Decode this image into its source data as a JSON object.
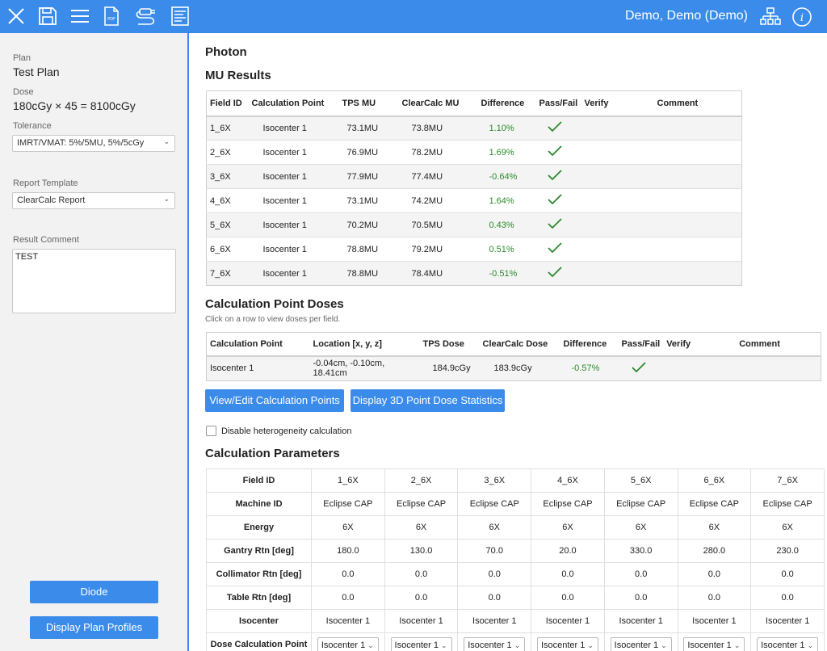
{
  "topbar": {
    "icons": [
      "close-icon",
      "save-icon",
      "menu-icon",
      "pdf-icon",
      "plug-icon",
      "document-list-icon"
    ],
    "pdf_text": "PDF",
    "user": "Demo, Demo (Demo)",
    "right_icons": [
      "org-chart-icon",
      "info-icon"
    ]
  },
  "sidebar": {
    "plan_label": "Plan",
    "plan_value": "Test Plan",
    "dose_label": "Dose",
    "dose_value": "180cGy × 45 = 8100cGy",
    "tolerance_label": "Tolerance",
    "tolerance_value": "IMRT/VMAT: 5%/5MU, 5%/5cGy",
    "report_template_label": "Report Template",
    "report_template_value": "ClearCalc Report",
    "result_comment_label": "Result Comment",
    "result_comment_value": "TEST",
    "diode_button": "Diode",
    "plan_profiles_button": "Display Plan Profiles"
  },
  "main": {
    "heading": "Photon",
    "mu_results": {
      "title": "MU Results",
      "columns": [
        "Field ID",
        "Calculation Point",
        "TPS MU",
        "ClearCalc MU",
        "Difference",
        "Pass/Fail",
        "Verify",
        "Comment"
      ],
      "rows": [
        {
          "field": "1_6X",
          "point": "Isocenter 1",
          "tps": "73.1MU",
          "cc": "73.8MU",
          "diff": "1.10%"
        },
        {
          "field": "2_6X",
          "point": "Isocenter 1",
          "tps": "76.9MU",
          "cc": "78.2MU",
          "diff": "1.69%"
        },
        {
          "field": "3_6X",
          "point": "Isocenter 1",
          "tps": "77.9MU",
          "cc": "77.4MU",
          "diff": "-0.64%"
        },
        {
          "field": "4_6X",
          "point": "Isocenter 1",
          "tps": "73.1MU",
          "cc": "74.2MU",
          "diff": "1.64%"
        },
        {
          "field": "5_6X",
          "point": "Isocenter 1",
          "tps": "70.2MU",
          "cc": "70.5MU",
          "diff": "0.43%"
        },
        {
          "field": "6_6X",
          "point": "Isocenter 1",
          "tps": "78.8MU",
          "cc": "79.2MU",
          "diff": "0.51%"
        },
        {
          "field": "7_6X",
          "point": "Isocenter 1",
          "tps": "78.8MU",
          "cc": "78.4MU",
          "diff": "-0.51%"
        }
      ]
    },
    "calc_point_doses": {
      "title": "Calculation Point Doses",
      "subtitle": "Click on a row to view doses per field.",
      "columns": [
        "Calculation Point",
        "Location [x, y, z]",
        "TPS Dose",
        "ClearCalc Dose",
        "Difference",
        "Pass/Fail",
        "Verify",
        "Comment"
      ],
      "rows": [
        {
          "point": "Isocenter 1",
          "location": "-0.04cm, -0.10cm, 18.41cm",
          "tps": "184.9cGy",
          "cc": "183.9cGy",
          "diff": "-0.57%"
        }
      ]
    },
    "buttons": {
      "view_edit": "View/Edit Calculation Points",
      "display_3d": "Display 3D Point Dose Statistics"
    },
    "heterogeneity_label": "Disable heterogeneity calculation",
    "calc_params": {
      "title": "Calculation Parameters",
      "rows": [
        {
          "label": "Field ID",
          "values": [
            "1_6X",
            "2_6X",
            "3_6X",
            "4_6X",
            "5_6X",
            "6_6X",
            "7_6X"
          ]
        },
        {
          "label": "Machine ID",
          "values": [
            "Eclipse CAP",
            "Eclipse CAP",
            "Eclipse CAP",
            "Eclipse CAP",
            "Eclipse CAP",
            "Eclipse CAP",
            "Eclipse CAP"
          ]
        },
        {
          "label": "Energy",
          "values": [
            "6X",
            "6X",
            "6X",
            "6X",
            "6X",
            "6X",
            "6X"
          ]
        },
        {
          "label": "Gantry Rtn [deg]",
          "values": [
            "180.0",
            "130.0",
            "70.0",
            "20.0",
            "330.0",
            "280.0",
            "230.0"
          ]
        },
        {
          "label": "Collimator Rtn [deg]",
          "values": [
            "0.0",
            "0.0",
            "0.0",
            "0.0",
            "0.0",
            "0.0",
            "0.0"
          ]
        },
        {
          "label": "Table Rtn [deg]",
          "values": [
            "0.0",
            "0.0",
            "0.0",
            "0.0",
            "0.0",
            "0.0",
            "0.0"
          ]
        },
        {
          "label": "Isocenter",
          "values": [
            "Isocenter 1",
            "Isocenter 1",
            "Isocenter 1",
            "Isocenter 1",
            "Isocenter 1",
            "Isocenter 1",
            "Isocenter 1"
          ]
        },
        {
          "label": "Dose Calculation Point",
          "select": true,
          "values": [
            "Isocenter 1",
            "Isocenter 1",
            "Isocenter 1",
            "Isocenter 1",
            "Isocenter 1",
            "Isocenter 1",
            "Isocenter 1"
          ]
        }
      ]
    }
  }
}
